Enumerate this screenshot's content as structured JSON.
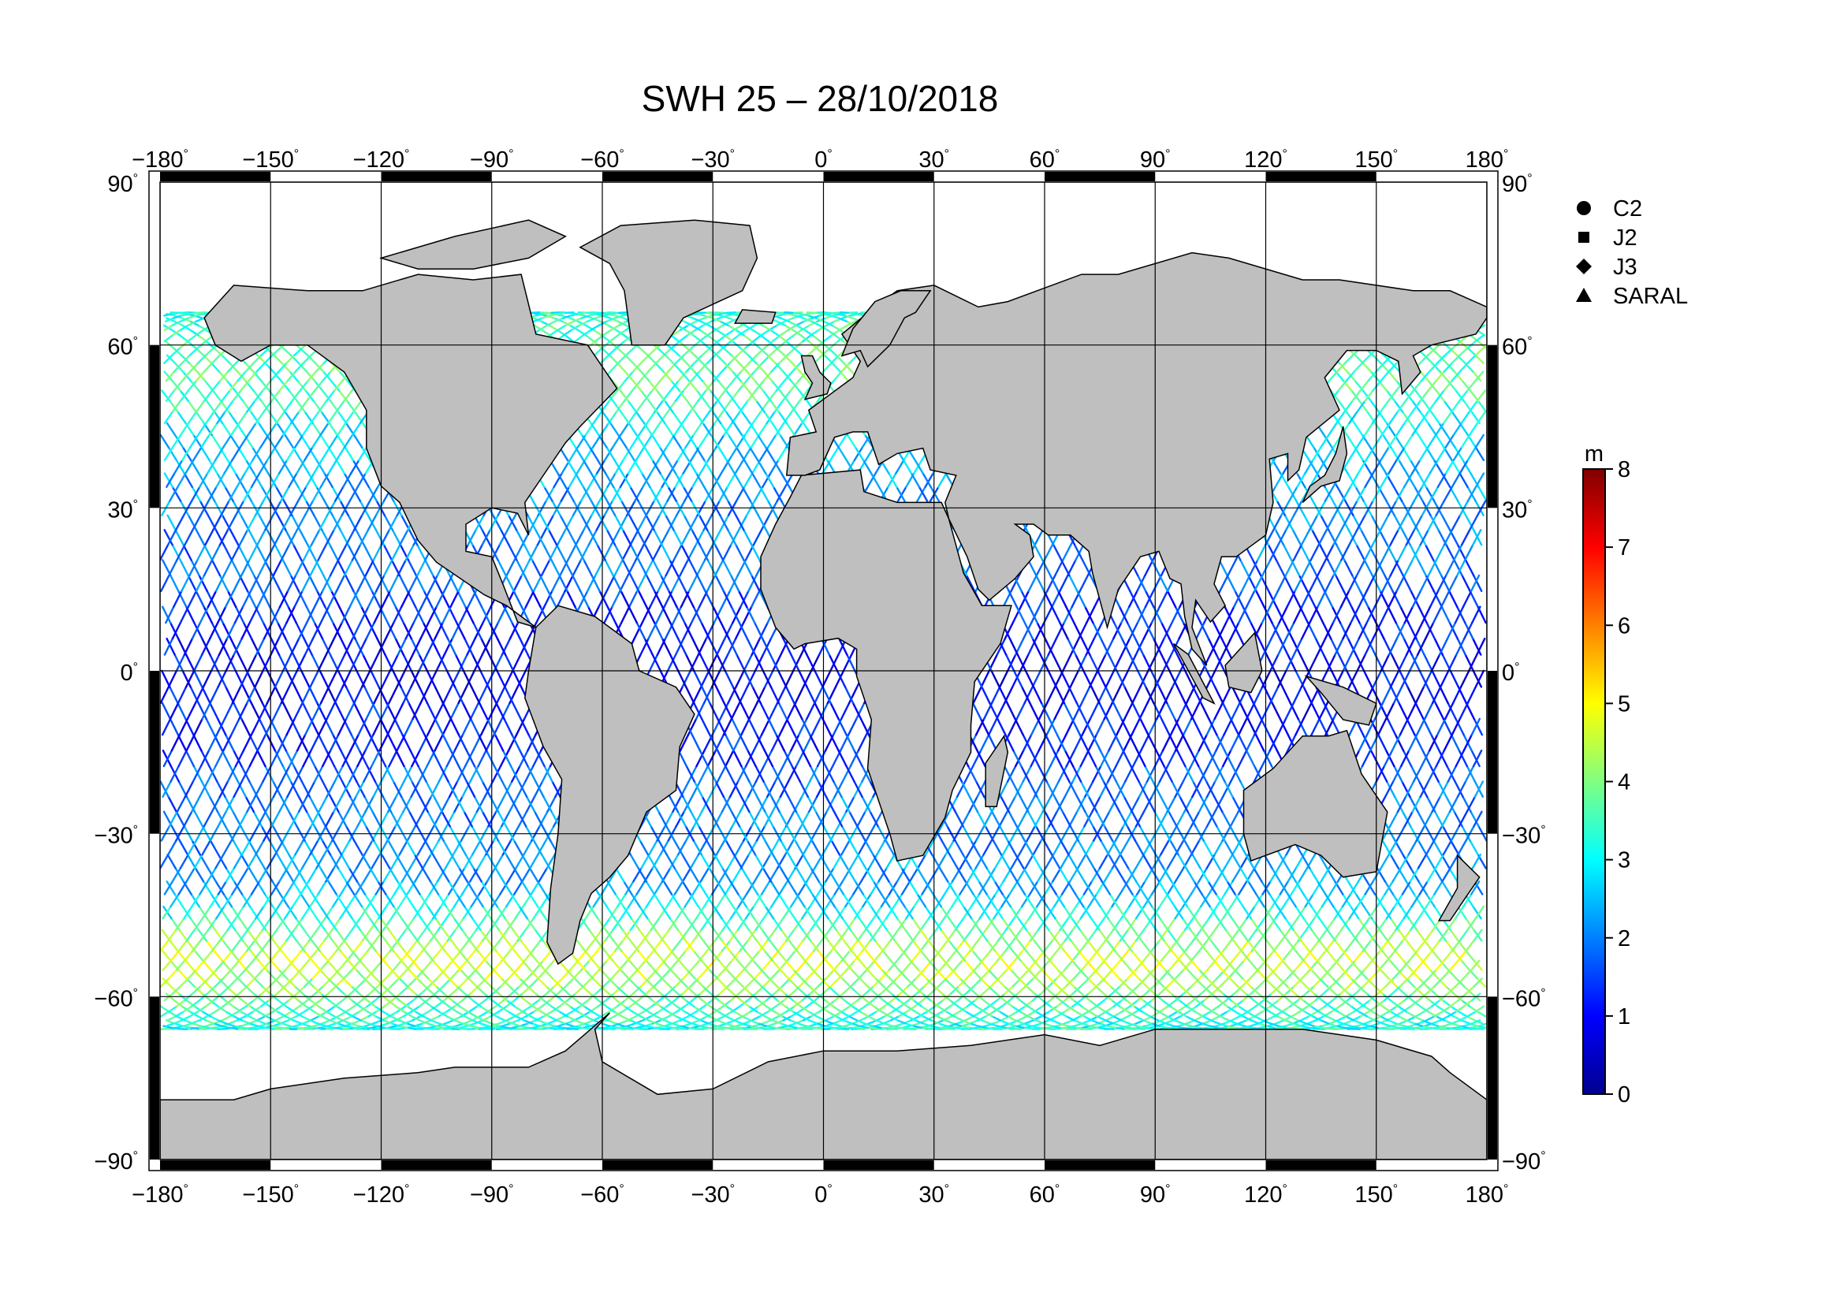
{
  "title": "SWH 25 – 28/10/2018",
  "lon_ticks": [
    {
      "value": -180,
      "label": "−180"
    },
    {
      "value": -150,
      "label": "−150"
    },
    {
      "value": -120,
      "label": "−120"
    },
    {
      "value": -90,
      "label": "−90"
    },
    {
      "value": -60,
      "label": "−60"
    },
    {
      "value": -30,
      "label": "−30"
    },
    {
      "value": 0,
      "label": "0"
    },
    {
      "value": 30,
      "label": "30"
    },
    {
      "value": 60,
      "label": "60"
    },
    {
      "value": 90,
      "label": "90"
    },
    {
      "value": 120,
      "label": "120"
    },
    {
      "value": 150,
      "label": "150"
    },
    {
      "value": 180,
      "label": "180"
    }
  ],
  "lat_ticks": [
    {
      "value": 90,
      "label": "90"
    },
    {
      "value": 60,
      "label": "60"
    },
    {
      "value": 30,
      "label": "30"
    },
    {
      "value": 0,
      "label": "0"
    },
    {
      "value": -30,
      "label": "−30"
    },
    {
      "value": -60,
      "label": "−60"
    },
    {
      "value": -90,
      "label": "−90"
    }
  ],
  "degree_symbol": "°",
  "legend": {
    "items": [
      {
        "label": "C2",
        "marker": "circle-icon"
      },
      {
        "label": "J2",
        "marker": "square-icon"
      },
      {
        "label": "J3",
        "marker": "diamond-icon"
      },
      {
        "label": "SARAL",
        "marker": "triangle-icon"
      }
    ]
  },
  "colorbar": {
    "unit": "m",
    "min": 0,
    "max": 8,
    "ticks": [
      "0",
      "1",
      "2",
      "3",
      "4",
      "5",
      "6",
      "7",
      "8"
    ],
    "colors": [
      "#00008f",
      "#0000ff",
      "#0080ff",
      "#00ffff",
      "#80ff80",
      "#ffff00",
      "#ff8000",
      "#ff0000",
      "#800000"
    ]
  },
  "map_extent": {
    "lon_min": -180,
    "lon_max": 180,
    "lat_min": -90,
    "lat_max": 90
  },
  "colors": {
    "land": "#bfbfbf",
    "ocean": "#ffffff",
    "coast": "#000000"
  }
}
